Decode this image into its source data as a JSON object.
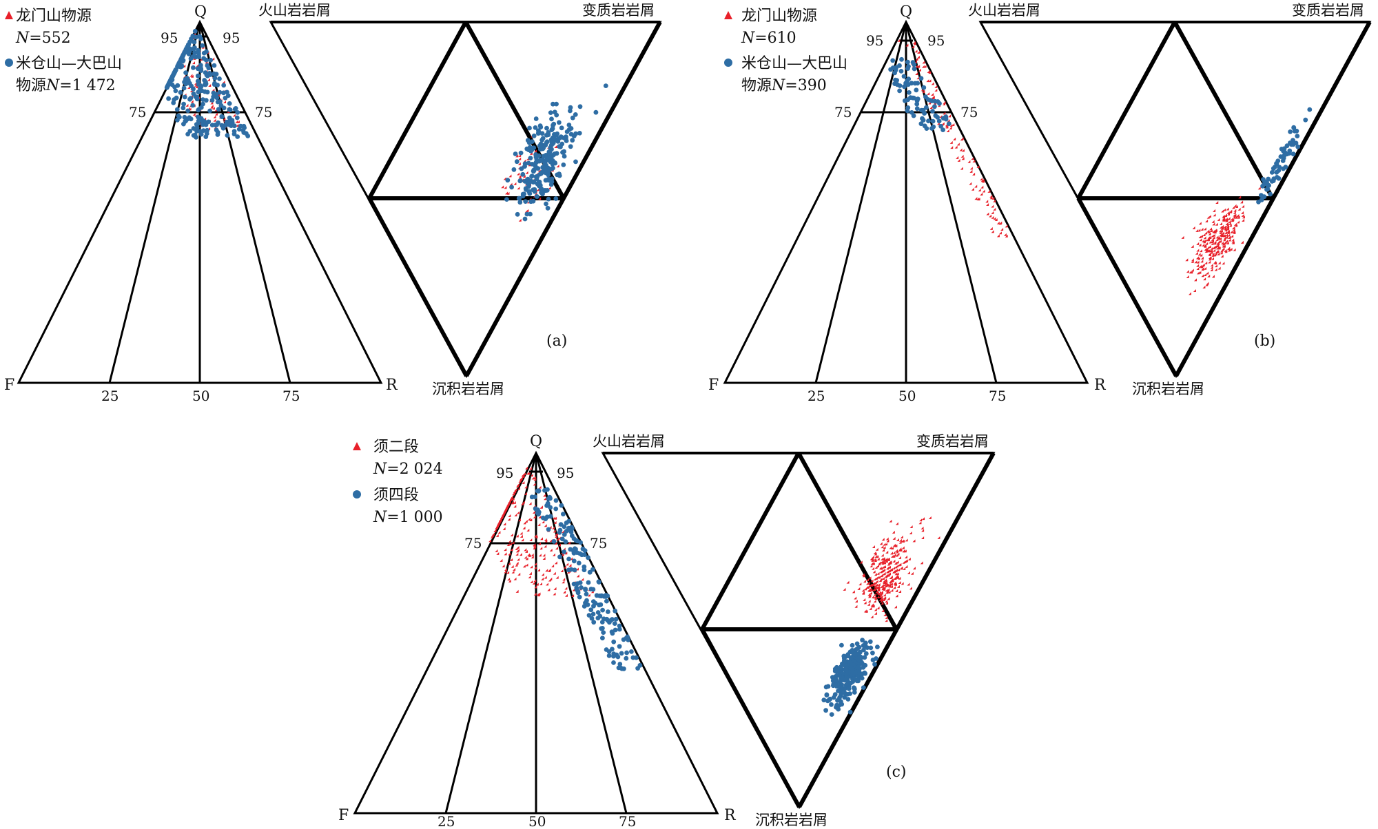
{
  "colors": {
    "series_red": "#e8202a",
    "series_blue": "#2e6da4",
    "frame": "#000000"
  },
  "panels": [
    {
      "label": "(a)",
      "apex_q": "Q",
      "apex_f": "F",
      "apex_r": "R",
      "ticks": {
        "bottom": [
          "25",
          "50",
          "75"
        ],
        "left_75": "75",
        "right_75": "75",
        "left_95": "95",
        "right_95": "95"
      },
      "lithic": {
        "top_left": "火山岩岩屑",
        "top_right": "变质岩岩屑",
        "bottom": "沉积岩岩屑"
      },
      "legend": [
        {
          "name": "龙门山物源",
          "n_prefix": "N",
          "n_value": "=552",
          "marker": "triangle"
        },
        {
          "name": "米仓山—大巴山",
          "name2": "物源",
          "n_prefix": "N",
          "n_value": "=1 472",
          "marker": "circle"
        }
      ]
    },
    {
      "label": "(b)",
      "apex_q": "Q",
      "apex_f": "F",
      "apex_r": "R",
      "ticks": {
        "bottom": [
          "25",
          "50",
          "75"
        ],
        "left_75": "75",
        "right_75": "75",
        "left_95": "95",
        "right_95": "95"
      },
      "lithic": {
        "top_left": "火山岩岩屑",
        "top_right": "变质岩岩屑",
        "bottom": "沉积岩岩屑"
      },
      "legend": [
        {
          "name": "龙门山物源",
          "n_prefix": "N",
          "n_value": "=610",
          "marker": "triangle"
        },
        {
          "name": "米仓山—大巴山",
          "name2": "物源",
          "n_prefix": "N",
          "n_value": "=390",
          "marker": "circle"
        }
      ]
    },
    {
      "label": "(c)",
      "apex_q": "Q",
      "apex_f": "F",
      "apex_r": "R",
      "ticks": {
        "bottom": [
          "25",
          "50",
          "75"
        ],
        "left_75": "75",
        "right_75": "75",
        "left_95": "95",
        "right_95": "95"
      },
      "lithic": {
        "top_left": "火山岩岩屑",
        "top_right": "变质岩岩屑",
        "bottom": "沉积岩岩屑"
      },
      "legend": [
        {
          "name": "须二段",
          "n_prefix": "N",
          "n_value": "=2 024",
          "marker": "triangle"
        },
        {
          "name": "须四段",
          "n_prefix": "N",
          "n_value": "=1 000",
          "marker": "circle"
        }
      ]
    }
  ],
  "chart_data": [
    {
      "type": "scatter",
      "title": "(a)",
      "diagram": "QFR ternary + lithic fragment ternary",
      "series": [
        {
          "name": "龙门山物源",
          "n": 552,
          "marker": "triangle",
          "color": "#e8202a",
          "qfr_clusters": [
            {
              "Q": [
                80,
                97
              ],
              "F": [
                1,
                12
              ],
              "R_rest": true
            },
            {
              "Q": [
                70,
                82
              ],
              "F": [
                3,
                15
              ],
              "R_rest": true
            }
          ],
          "lithic_clusters": [
            {
              "region": "metamorphic-sedimentary boundary",
              "spread": "wide"
            }
          ]
        },
        {
          "name": "米仓山—大巴山物源",
          "n": 1472,
          "marker": "circle",
          "color": "#2e6da4",
          "qfr_clusters": [
            {
              "Q": [
                68,
                98
              ],
              "F": [
                2,
                20
              ],
              "R_rest": true
            }
          ],
          "lithic_clusters": [
            {
              "region": "metamorphic and sedimentary fields",
              "spread": "dense"
            }
          ]
        }
      ],
      "axes": {
        "qfr_ticks": [
          25,
          50,
          75
        ],
        "q_lines": [
          75,
          95
        ]
      }
    },
    {
      "type": "scatter",
      "title": "(b)",
      "diagram": "QFR ternary + lithic fragment ternary",
      "series": [
        {
          "name": "龙门山物源",
          "n": 610,
          "marker": "triangle",
          "color": "#e8202a",
          "qfr_clusters": [
            {
              "Q": [
                40,
                95
              ],
              "F": [
                0,
                5
              ],
              "R_rest": true
            }
          ],
          "lithic_clusters": [
            {
              "region": "sedimentary field, near metamorphic edge",
              "spread": "dense"
            }
          ]
        },
        {
          "name": "米仓山—大巴山物源",
          "n": 390,
          "marker": "circle",
          "color": "#2e6da4",
          "qfr_clusters": [
            {
              "Q": [
                70,
                90
              ],
              "F": [
                2,
                12
              ],
              "R_rest": true
            }
          ],
          "lithic_clusters": [
            {
              "region": "metamorphic-sedimentary edge",
              "spread": "sparse"
            }
          ]
        }
      ],
      "axes": {
        "qfr_ticks": [
          25,
          50,
          75
        ],
        "q_lines": [
          75,
          95
        ]
      }
    },
    {
      "type": "scatter",
      "title": "(c)",
      "diagram": "QFR ternary + lithic fragment ternary",
      "series": [
        {
          "name": "须二段",
          "n": 2024,
          "marker": "triangle",
          "color": "#e8202a",
          "qfr_clusters": [
            {
              "Q": [
                60,
                98
              ],
              "F": [
                3,
                25
              ],
              "R_rest": true
            }
          ],
          "lithic_clusters": [
            {
              "region": "metamorphic field",
              "spread": "dense"
            }
          ]
        },
        {
          "name": "须四段",
          "n": 1000,
          "marker": "circle",
          "color": "#2e6da4",
          "qfr_clusters": [
            {
              "Q": [
                40,
                90
              ],
              "F": [
                0,
                8
              ],
              "R_rest": true
            }
          ],
          "lithic_clusters": [
            {
              "region": "sedimentary field",
              "spread": "dense"
            }
          ]
        }
      ],
      "axes": {
        "qfr_ticks": [
          25,
          50,
          75
        ],
        "q_lines": [
          75,
          95
        ]
      }
    }
  ]
}
